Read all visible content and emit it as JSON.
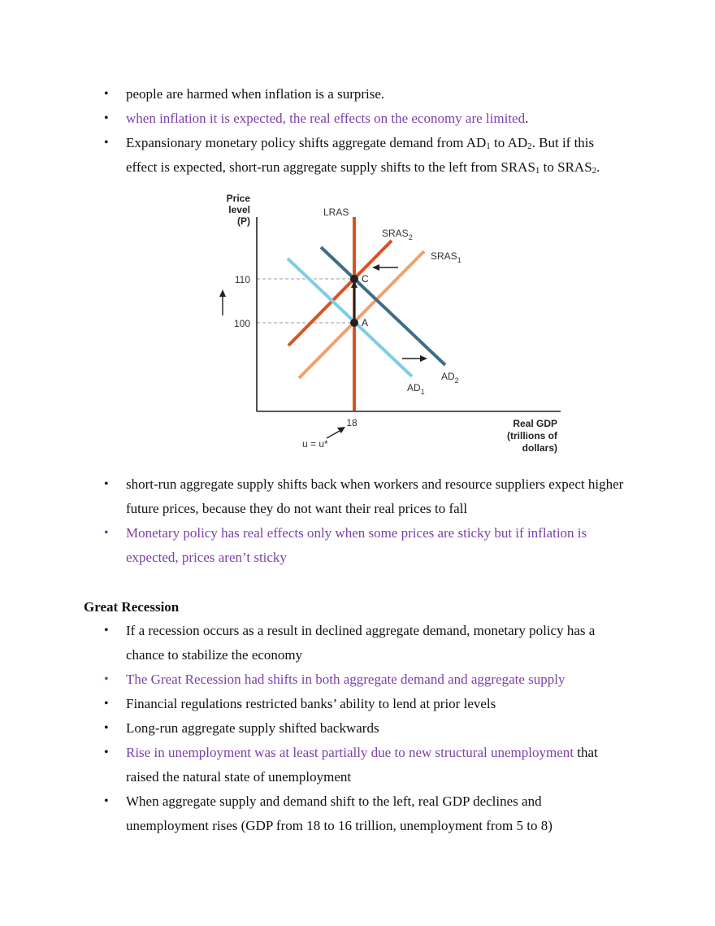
{
  "bullets_top": [
    {
      "text": "people are harmed when inflation is a surprise.",
      "color": "#111111"
    },
    {
      "text": "when inflation it is expected, the real effects on the economy are limited",
      "suffix": ".",
      "color": "#7b3fa8"
    },
    {
      "pre": "Expansionary monetary policy shifts aggregate demand from AD",
      "s1": "1",
      "mid1": " to AD",
      "s2": "2",
      "mid2": ". But if this effect is expected, short-run aggregate supply shifts to the left from SRAS",
      "s3": "1",
      "mid3": " to SRAS",
      "s4": "2",
      "post": "."
    }
  ],
  "figure": {
    "y_axis_label": [
      "Price",
      "level",
      "(P)"
    ],
    "x_axis_label": [
      "Real GDP",
      "(trillions of",
      "dollars)"
    ],
    "y_ticks": [
      "110",
      "100"
    ],
    "x_tick": "18",
    "natural_label": "u = u*",
    "curves": {
      "lras": "LRAS",
      "sras2": "SRAS",
      "sras2_sub": "2",
      "sras1": "SRAS",
      "sras1_sub": "1",
      "ad2": "AD",
      "ad2_sub": "2",
      "ad1": "AD",
      "ad1_sub": "1"
    },
    "points": {
      "c": "C",
      "a": "A"
    },
    "colors": {
      "lras": "#d9531e",
      "sras2": "#d9531e",
      "sras1": "#f3a06b",
      "ad1": "#7fcde4",
      "ad2": "#3f6e84",
      "axis": "#222222"
    }
  },
  "chart_data": {
    "type": "line",
    "title": "",
    "ylabel": "Price level (P)",
    "xlabel": "Real GDP (trillions of dollars)",
    "y_ticks": [
      100,
      110
    ],
    "x_ticks": [
      18
    ],
    "points": [
      {
        "label": "A",
        "x": 18,
        "y": 100
      },
      {
        "label": "C",
        "x": 18,
        "y": 110
      }
    ],
    "series": [
      {
        "name": "LRAS"
      },
      {
        "name": "SRAS2"
      },
      {
        "name": "SRAS1"
      },
      {
        "name": "AD1"
      },
      {
        "name": "AD2"
      }
    ]
  },
  "bullets_mid": [
    {
      "text": "short-run aggregate supply shifts back when workers and resource suppliers expect higher future prices, because they do not want their real prices to fall",
      "color": "#111111"
    },
    {
      "text": "Monetary policy has real effects only when some prices are sticky but if inflation is expected, prices aren’t sticky",
      "color": "#7b3fa8"
    }
  ],
  "heading": "Great Recession",
  "bullets_bottom": [
    {
      "text": "If a recession occurs as a result in declined aggregate demand, monetary policy has a chance to stabilize the economy",
      "color": "#111111"
    },
    {
      "text": "The Great Recession had shifts in both aggregate demand and aggregate supply",
      "color": "#7b3fa8"
    },
    {
      "text": "Financial regulations restricted banks’ ability to lend at prior levels",
      "color": "#111111"
    },
    {
      "text": "Long-run aggregate supply shifted backwards",
      "color": "#111111"
    },
    {
      "purple": "Rise in unemployment was at least partially due to new structural unemployment",
      "rest": " that raised the natural state of unemployment"
    },
    {
      "text": "When aggregate supply and demand shift to the left, real GDP declines and unemployment rises (GDP from 18 to 16 trillion, unemployment from 5 to 8)",
      "color": "#111111"
    }
  ],
  "bullet_char": "•"
}
